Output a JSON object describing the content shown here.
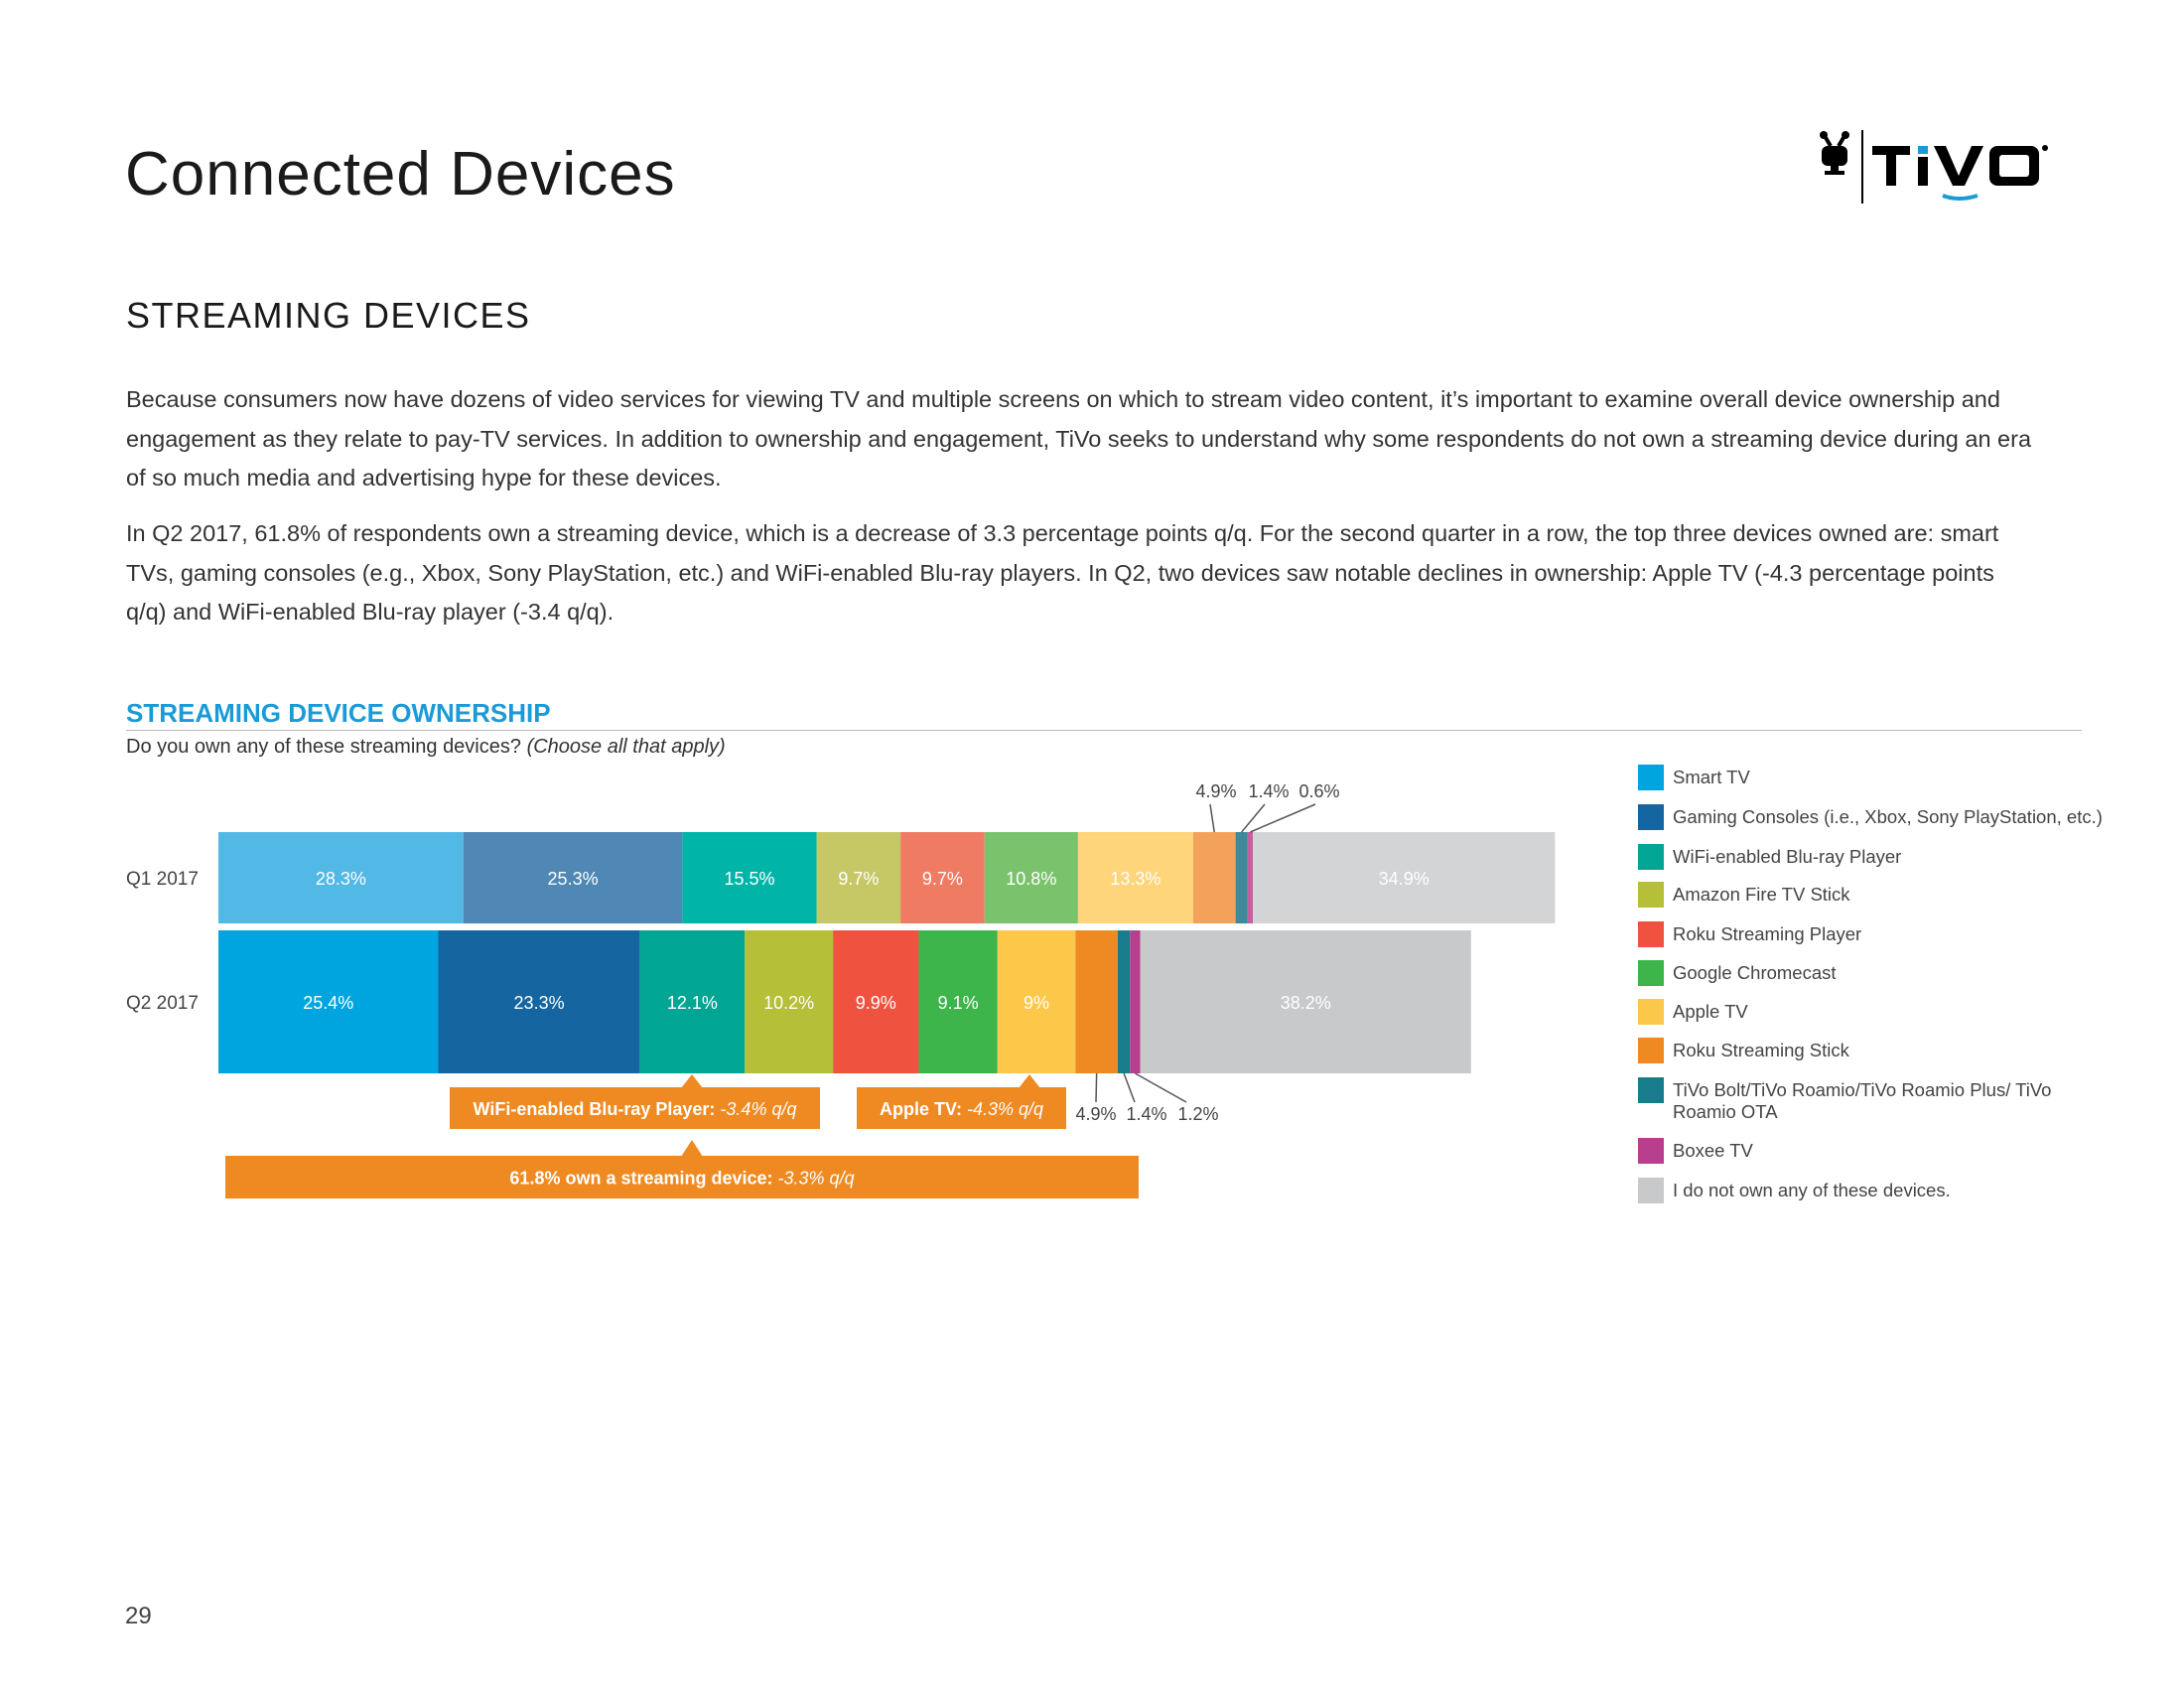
{
  "page": {
    "title": "Connected Devices",
    "section_title": "STREAMING DEVICES",
    "paragraphs": [
      "Because consumers now have dozens of video services for viewing TV and multiple screens on which to stream video content, it’s important to examine overall device ownership and engagement as they relate to pay-TV services. In addition to ownership and engagement, TiVo seeks to understand why some respondents do not own a streaming device during an era of so much media and advertising hype for these devices.",
      "In Q2 2017, 61.8% of respondents own a streaming device, which is a decrease of 3.3 percentage points q/q. For the second quarter in a row, the top three devices owned are: smart TVs, gaming consoles (e.g., Xbox, Sony PlayStation, etc.) and WiFi-enabled Blu-ray players. In Q2, two devices saw notable declines in ownership: Apple TV (-4.3 percentage points q/q) and WiFi-enabled Blu-ray player (-3.4 q/q)."
    ],
    "page_number": "29",
    "logo": {
      "text": "TiVo",
      "icon": "tivo-guy-icon",
      "accent": "#1a9bd7"
    }
  },
  "chart_data": {
    "type": "bar",
    "orientation": "horizontal",
    "stacked": true,
    "title": "STREAMING DEVICE OWNERSHIP",
    "subtitle": "Do you own any of these streaming devices?",
    "subtitle_note": "(Choose all that apply)",
    "categories": [
      "Q1 2017",
      "Q2 2017"
    ],
    "legend_position": "right",
    "grid": false,
    "series": [
      {
        "name": "Smart TV",
        "values": [
          28.3,
          25.4
        ],
        "colors": [
          "#52b8e6",
          "#00a5df"
        ]
      },
      {
        "name": "Gaming Consoles (i.e., Xbox, Sony PlayStation, etc.)",
        "values": [
          25.3,
          23.3
        ],
        "colors": [
          "#4f88b4",
          "#1565a0"
        ]
      },
      {
        "name": "WiFi-enabled Blu-ray Player",
        "values": [
          15.5,
          12.1
        ],
        "colors": [
          "#00b5a8",
          "#00a693"
        ]
      },
      {
        "name": "Amazon Fire TV Stick",
        "values": [
          9.7,
          10.2
        ],
        "colors": [
          "#c6c866",
          "#b5bf37"
        ]
      },
      {
        "name": "Roku Streaming Player",
        "values": [
          9.7,
          9.9
        ],
        "colors": [
          "#ef7c62",
          "#ef5340"
        ]
      },
      {
        "name": "Google Chromecast",
        "values": [
          10.8,
          9.1
        ],
        "colors": [
          "#7bc26d",
          "#3db54a"
        ]
      },
      {
        "name": "Apple TV",
        "values": [
          13.3,
          9
        ],
        "colors": [
          "#fed57a",
          "#fdc84a"
        ]
      },
      {
        "name": "Roku Streaming Stick",
        "values": [
          4.9,
          4.9
        ],
        "colors": [
          "#f4a259",
          "#ef8a22"
        ]
      },
      {
        "name": "TiVo Bolt/TiVo Roamio/TiVo Roamio Plus/ TiVo Roamio OTA",
        "values": [
          1.4,
          1.4
        ],
        "colors": [
          "#3d8a9a",
          "#177d8c"
        ]
      },
      {
        "name": "Boxee TV",
        "values": [
          0.6,
          1.2
        ],
        "colors": [
          "#c45fa0",
          "#b83f8e"
        ]
      },
      {
        "name": "I do not own any of these devices.",
        "values": [
          34.9,
          38.2
        ],
        "colors": [
          "#d3d4d6",
          "#c8c9cb"
        ]
      }
    ],
    "legend_colors": [
      "#00a5df",
      "#1565a0",
      "#00a693",
      "#b5bf37",
      "#ef5340",
      "#3db54a",
      "#fdc84a",
      "#ef8a22",
      "#177d8c",
      "#b83f8e",
      "#c8c9cb"
    ],
    "callouts": [
      {
        "label": "WiFi-enabled Blu-ray Player:",
        "change": "-3.4% q/q",
        "color": "#ef8a22"
      },
      {
        "label": "Apple TV:",
        "change": "-4.3% q/q",
        "color": "#ef8a22"
      },
      {
        "label": "61.8% own a streaming device:",
        "change": "-3.3% q/q",
        "color": "#ef8a22"
      }
    ]
  }
}
